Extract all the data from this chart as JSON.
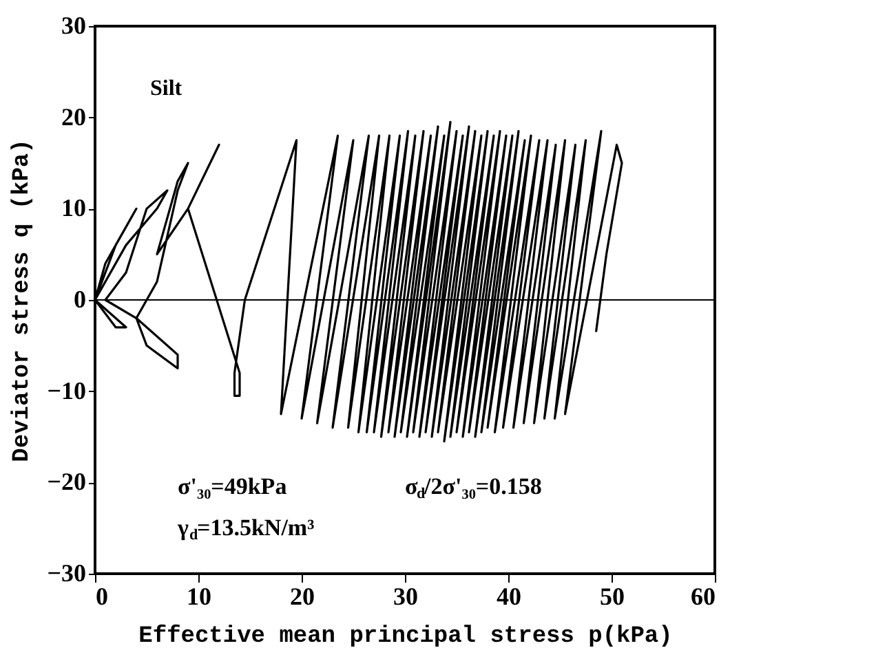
{
  "chart_data": {
    "type": "line",
    "xlabel": "Effective mean principal stress p(kPa)",
    "ylabel": "Deviator stress q (kPa)",
    "xlim": [
      0,
      60
    ],
    "xticks": [
      0,
      10,
      20,
      30,
      40,
      50,
      60
    ],
    "ylim": [
      -30,
      30
    ],
    "yticks": [
      -30,
      -20,
      -10,
      0,
      10,
      20,
      30
    ],
    "grid": false,
    "marker": "none",
    "line_style": "solid",
    "ref_lines": [
      {
        "axis": "y",
        "value": 0,
        "color": "#000000"
      }
    ],
    "annotations": [
      "Silt",
      "σ'₃₀=49kPa",
      "γ$_{d}$=13.5kN/m³",
      "σ$_{d}$/2σ'₃₀=0.158"
    ],
    "series": [
      {
        "color": "#000000",
        "x": [
          0,
          1,
          3,
          4,
          2,
          0,
          2,
          3,
          2,
          0,
          3,
          6,
          7,
          5,
          3,
          1,
          4,
          8,
          8,
          5,
          4,
          6,
          8,
          9,
          8,
          6,
          9,
          12,
          9,
          14,
          14,
          13.5,
          13.5,
          14.5,
          19.5,
          18,
          23.5,
          20,
          25,
          21.5,
          26.5,
          23,
          27.5,
          24.5,
          28.5,
          25.5,
          29.5,
          26.3,
          30.3,
          27,
          31,
          27.7,
          31.8,
          28.4,
          32.5,
          29,
          33.2,
          29.6,
          33.8,
          30.2,
          34.4,
          30.8,
          35,
          31.4,
          35.6,
          32,
          36.2,
          32.6,
          36.8,
          33.2,
          37.4,
          33.8,
          38,
          34.4,
          38.6,
          35,
          39.2,
          35.6,
          39.8,
          36.2,
          40.4,
          36.8,
          41,
          37.4,
          41.6,
          38,
          42.2,
          38.7,
          43,
          39.5,
          43.8,
          40.5,
          44.6,
          41.5,
          45.5,
          42.5,
          46.5,
          43.5,
          47.5,
          44.5,
          49,
          45.5,
          50.5,
          51,
          49.5,
          48.5
        ],
        "values": [
          0,
          4,
          8,
          10,
          6,
          0,
          -2,
          -3,
          -3,
          0,
          6,
          10,
          12,
          10,
          3,
          0,
          -2,
          -6,
          -7.5,
          -5,
          -2,
          2,
          12,
          15,
          13,
          5,
          10,
          17,
          10,
          -8,
          -10.5,
          -10.5,
          -8,
          0,
          17.5,
          -12.5,
          18,
          -13,
          17.5,
          -13.5,
          18,
          -14,
          18,
          -14,
          18,
          -14.5,
          18,
          -14.5,
          18.5,
          -14.5,
          18,
          -15,
          18.5,
          -14.5,
          18,
          -15,
          19,
          -14.5,
          18,
          -15,
          19.5,
          -14.5,
          18.5,
          -15,
          18,
          -14.5,
          19,
          -15,
          18.5,
          -14.5,
          18,
          -15.5,
          18.5,
          -15,
          18,
          -14.5,
          18.5,
          -15,
          18,
          -14.5,
          18,
          -15,
          18.5,
          -14.5,
          17.5,
          -14,
          18,
          -14.5,
          17.5,
          -14,
          17.5,
          -14,
          17,
          -13.5,
          17.5,
          -13.5,
          17,
          -13,
          17.5,
          -13,
          18.5,
          -12.5,
          17,
          15,
          5,
          -3.5
        ]
      }
    ]
  }
}
